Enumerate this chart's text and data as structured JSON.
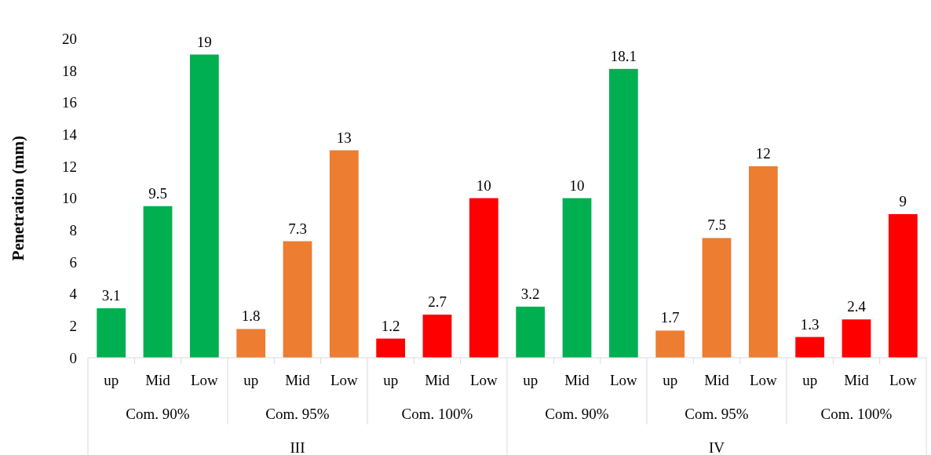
{
  "chart_data": {
    "type": "bar",
    "ylabel": "Penetration (mm)",
    "categories": [
      "up",
      "Mid",
      "Low",
      "up",
      "Mid",
      "Low",
      "up",
      "Mid",
      "Low",
      "up",
      "Mid",
      "Low",
      "up",
      "Mid",
      "Low",
      "up",
      "Mid",
      "Low"
    ],
    "values": [
      3.1,
      9.5,
      19,
      1.8,
      7.3,
      13,
      1.2,
      2.7,
      10,
      3.2,
      10,
      18.1,
      1.7,
      7.5,
      12,
      1.3,
      2.4,
      9
    ],
    "colors": [
      "#00b050",
      "#00b050",
      "#00b050",
      "#ed7d31",
      "#ed7d31",
      "#ed7d31",
      "#ff0000",
      "#ff0000",
      "#ff0000",
      "#00b050",
      "#00b050",
      "#00b050",
      "#ed7d31",
      "#ed7d31",
      "#ed7d31",
      "#ff0000",
      "#ff0000",
      "#ff0000"
    ],
    "ylim": [
      0,
      20
    ],
    "yticks": [
      0,
      2,
      4,
      6,
      8,
      10,
      12,
      14,
      16,
      18,
      20
    ],
    "data_labels": true,
    "annotations": [
      "Com. 90%",
      "Com. 95%",
      "Com. 100%",
      "Com. 90%",
      "Com. 95%",
      "Com. 100%",
      "III",
      "IV"
    ]
  }
}
